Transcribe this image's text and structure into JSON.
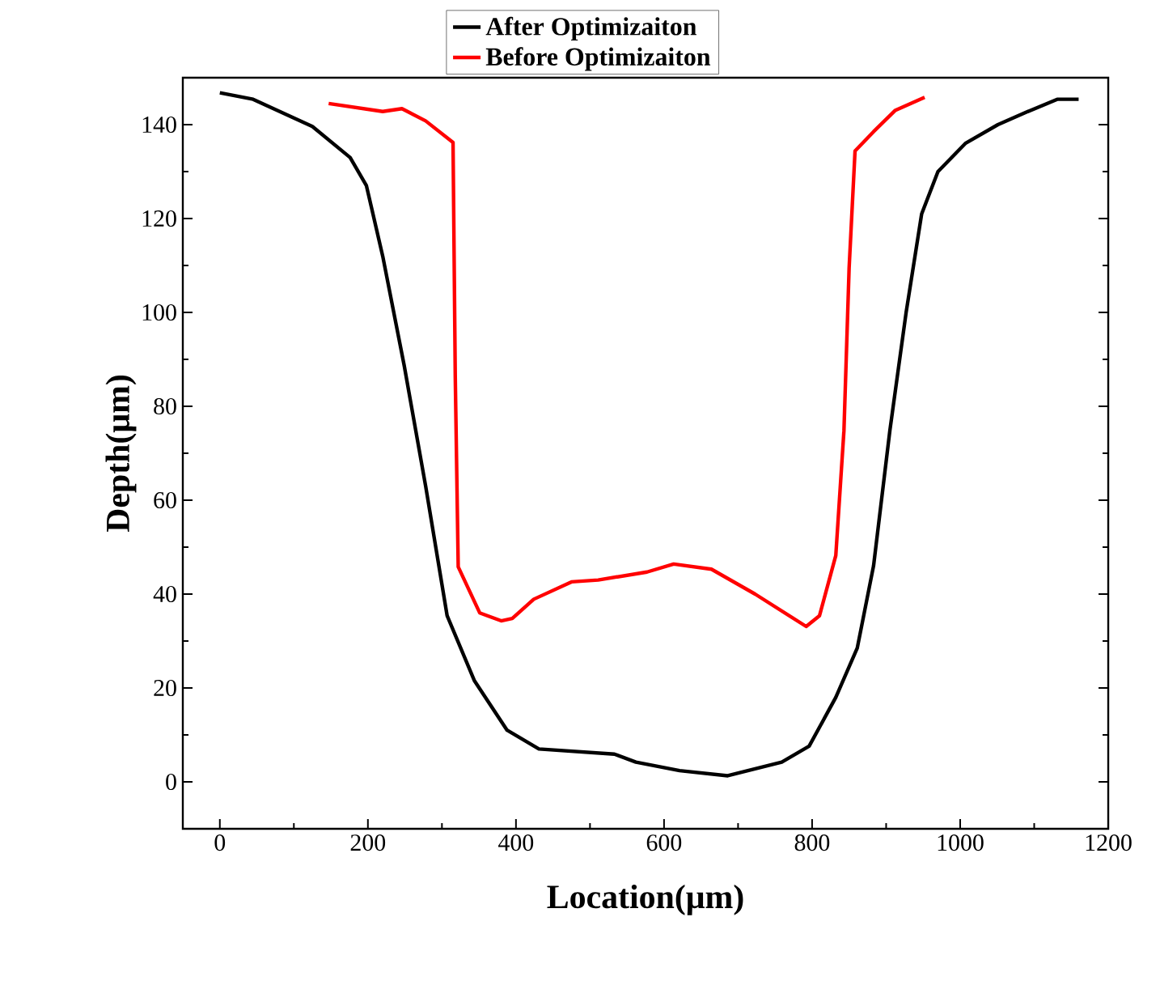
{
  "chart_data": {
    "type": "line",
    "xlabel": "Location(μm)",
    "ylabel": "Depth(μm)",
    "xlim": [
      -50,
      1200
    ],
    "ylim": [
      -10,
      150
    ],
    "xticks": [
      0,
      200,
      400,
      600,
      800,
      1000,
      1200
    ],
    "yticks": [
      0,
      20,
      40,
      60,
      80,
      100,
      120,
      140
    ],
    "legend": "top",
    "grid": false,
    "marker": "none",
    "line_style": "solid",
    "series": [
      {
        "name": "After Optimizaiton",
        "color": "#000000",
        "x": [
          0,
          45,
          125,
          176,
          198,
          220,
          249,
          278,
          307,
          344,
          388,
          431,
          533,
          562,
          621,
          686,
          759,
          796,
          832,
          861,
          883,
          905,
          927,
          948,
          970,
          1007,
          1051,
          1087,
          1131,
          1160
        ],
        "values": [
          146.8,
          145.4,
          139.6,
          133,
          127,
          112,
          88.7,
          63,
          35.4,
          21.5,
          11,
          7,
          5.9,
          4.2,
          2.4,
          1.3,
          4.2,
          7.6,
          18,
          28.5,
          46,
          74.8,
          100,
          121,
          130,
          136,
          140,
          142.5,
          145.4,
          145.4
        ]
      },
      {
        "name": "Before Optimizaiton",
        "color": "#ff0000",
        "x": [
          147,
          220,
          246,
          278,
          315,
          318,
          322,
          351,
          380,
          395,
          424,
          475,
          511,
          577,
          613,
          664,
          723,
          792,
          810,
          832,
          843,
          850,
          858,
          883,
          912,
          952
        ],
        "values": [
          144.5,
          142.8,
          143.4,
          140.8,
          136.2,
          86.4,
          45.8,
          36,
          34.3,
          34.8,
          38.9,
          42.6,
          43,
          44.7,
          46.4,
          45.3,
          40,
          33.1,
          35.4,
          48.2,
          74.8,
          109.5,
          134.4,
          138.5,
          143,
          145.8
        ]
      }
    ]
  }
}
